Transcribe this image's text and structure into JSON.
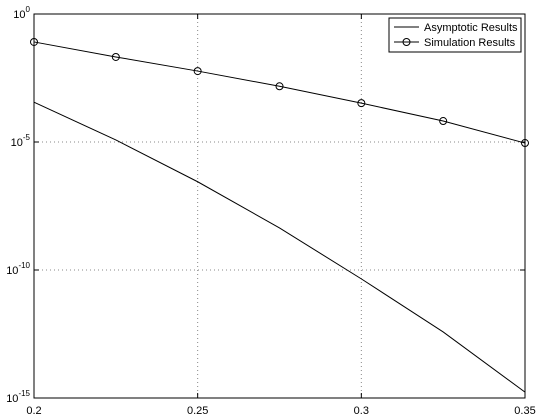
{
  "chart_data": {
    "type": "line",
    "log_y": true,
    "grid": true,
    "legend": "upper right",
    "x": [
      0.2,
      0.225,
      0.25,
      0.275,
      0.3,
      0.325,
      0.35
    ],
    "series": [
      {
        "name": "Asymptotic Results",
        "color": "#000000",
        "marker": "none",
        "values": [
          0.00036,
          1.2e-05,
          2.8e-07,
          4.4e-09,
          4.5e-11,
          3.8e-13,
          1.7e-15
        ]
      },
      {
        "name": "Simulation Results",
        "color": "#000000",
        "marker": "circle",
        "values": [
          0.081,
          0.021,
          0.0059,
          0.0015,
          0.00033,
          6.6e-05,
          9.1e-06
        ]
      }
    ],
    "xlim": [
      0.2,
      0.35
    ],
    "xticks": [
      0.2,
      0.25,
      0.3,
      0.35
    ],
    "ylim": [
      1e-15,
      1
    ],
    "yticks": [
      {
        "value": 1e-15,
        "label": "10^-15"
      },
      {
        "value": 1e-10,
        "label": "10^-10"
      },
      {
        "value": 1e-05,
        "label": "10^-5"
      },
      {
        "value": 1,
        "label": "10^0"
      }
    ]
  }
}
